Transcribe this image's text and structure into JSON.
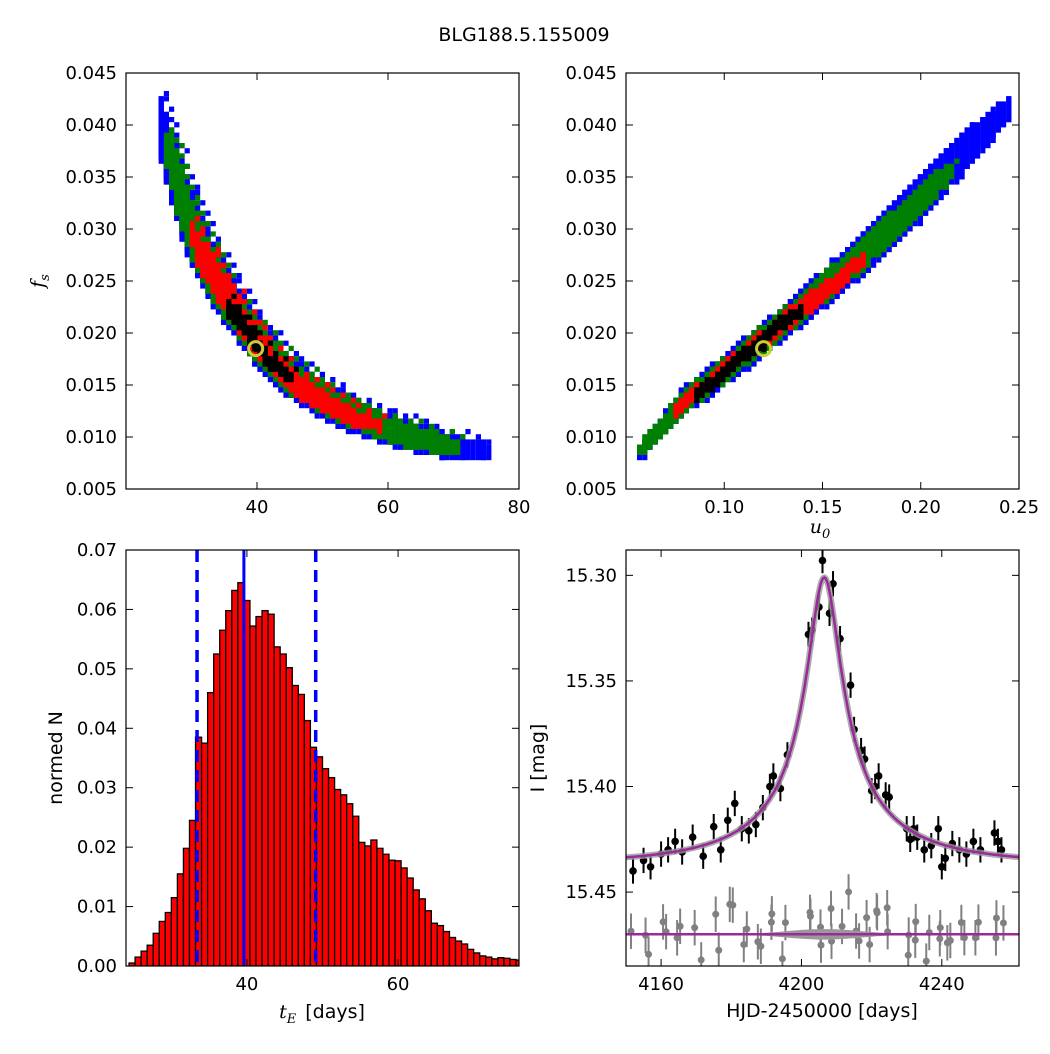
{
  "title": "BLG188.5.155009",
  "colors": {
    "blue": "#0000ff",
    "green": "#008000",
    "red": "#ff0000",
    "black": "#000000",
    "best_ring": "#cccc33",
    "model": "#9a2a9a",
    "model_band": "#999999",
    "resid": "#808080"
  },
  "chart_data": [
    {
      "type": "heatmap",
      "id": "ts_fs",
      "xlabel": "",
      "ylabel": "f_s",
      "ylabel_main": "f",
      "ylabel_sub": "s",
      "xlim": [
        20,
        80
      ],
      "ylim": [
        0.005,
        0.045
      ],
      "xticks": [
        40,
        60,
        80
      ],
      "xtick_labels": [
        "40",
        "60",
        "80"
      ],
      "yticks": [
        0.005,
        0.01,
        0.015,
        0.02,
        0.025,
        0.03,
        0.035,
        0.04,
        0.045
      ],
      "ytick_labels": [
        "0.005",
        "0.010",
        "0.015",
        "0.020",
        "0.025",
        "0.030",
        "0.035",
        "0.040",
        "0.045"
      ],
      "best_fit": [
        39.8,
        0.0185
      ],
      "contours": [
        {
          "level": "3 sigma",
          "color": "blue",
          "points": [
            [
              25,
              0.0405
            ],
            [
              26.5,
              0.0372
            ],
            [
              28,
              0.034
            ],
            [
              30,
              0.03
            ],
            [
              33,
              0.026
            ],
            [
              36.5,
              0.0225
            ],
            [
              40,
              0.019
            ],
            [
              45,
              0.0158
            ],
            [
              52,
              0.0128
            ],
            [
              60,
              0.0107
            ],
            [
              68,
              0.0093
            ],
            [
              75.5,
              0.0085
            ]
          ],
          "half_width": [
            0.0022,
            0.0028,
            0.0032,
            0.0031,
            0.0027,
            0.0024,
            0.0021,
            0.0018,
            0.0015,
            0.0013,
            0.0011,
            0.0006
          ]
        },
        {
          "level": "2 sigma",
          "color": "green",
          "points": [
            [
              26.5,
              0.0375
            ],
            [
              28,
              0.034
            ],
            [
              30,
              0.03
            ],
            [
              33,
              0.026
            ],
            [
              36.5,
              0.0225
            ],
            [
              40,
              0.019
            ],
            [
              45,
              0.0158
            ],
            [
              52,
              0.0128
            ],
            [
              60,
              0.0107
            ],
            [
              67,
              0.0094
            ],
            [
              71,
              0.0088
            ]
          ],
          "half_width": [
            0.0016,
            0.0023,
            0.0024,
            0.0022,
            0.0019,
            0.0017,
            0.0014,
            0.0012,
            0.001,
            0.0008,
            0.0005
          ]
        },
        {
          "level": "1 sigma",
          "color": "red",
          "points": [
            [
              30,
              0.0298
            ],
            [
              31.5,
              0.0275
            ],
            [
              33,
              0.026
            ],
            [
              35,
              0.0238
            ],
            [
              37,
              0.022
            ],
            [
              40,
              0.019
            ],
            [
              43,
              0.0168
            ],
            [
              46,
              0.015
            ],
            [
              50,
              0.0135
            ],
            [
              55,
              0.0118
            ],
            [
              59,
              0.011
            ]
          ],
          "half_width": [
            0.0007,
            0.0012,
            0.0014,
            0.0014,
            0.0013,
            0.0012,
            0.001,
            0.0009,
            0.0008,
            0.0006,
            0.0003
          ]
        },
        {
          "level": "best",
          "color": "black",
          "points": [
            [
              35.5,
              0.0225
            ],
            [
              37.5,
              0.021
            ],
            [
              39.5,
              0.0192
            ],
            [
              42,
              0.0172
            ],
            [
              45,
              0.0158
            ]
          ],
          "half_width": [
            0.0004,
            0.0006,
            0.0006,
            0.0005,
            0.0003
          ]
        }
      ]
    },
    {
      "type": "heatmap",
      "id": "u0_fs",
      "xlabel": "u_0",
      "xlabel_main": "u",
      "xlabel_sub": "0",
      "ylabel": "",
      "xlim": [
        0.05,
        0.25
      ],
      "ylim": [
        0.005,
        0.045
      ],
      "xticks": [
        0.1,
        0.15,
        0.2,
        0.25
      ],
      "xtick_labels": [
        "0.10",
        "0.15",
        "0.20",
        "0.25"
      ],
      "yticks": [
        0.005,
        0.01,
        0.015,
        0.02,
        0.025,
        0.03,
        0.035,
        0.04,
        0.045
      ],
      "ytick_labels": [
        "0.005",
        "0.010",
        "0.015",
        "0.020",
        "0.025",
        "0.030",
        "0.035",
        "0.040",
        "0.045"
      ],
      "best_fit": [
        0.12,
        0.0185
      ],
      "contours": [
        {
          "level": "3 sigma",
          "color": "blue",
          "points": [
            [
              0.057,
              0.0085
            ],
            [
              0.08,
              0.0135
            ],
            [
              0.11,
              0.0178
            ],
            [
              0.14,
              0.0225
            ],
            [
              0.17,
              0.0275
            ],
            [
              0.2,
              0.033
            ],
            [
              0.22,
              0.037
            ],
            [
              0.245,
              0.0415
            ]
          ],
          "half_width": [
            0.0005,
            0.0011,
            0.0013,
            0.0015,
            0.0018,
            0.002,
            0.0018,
            0.0008
          ]
        },
        {
          "level": "2 sigma",
          "color": "green",
          "points": [
            [
              0.058,
              0.0088
            ],
            [
              0.08,
              0.0135
            ],
            [
              0.11,
              0.0178
            ],
            [
              0.14,
              0.0225
            ],
            [
              0.17,
              0.0275
            ],
            [
              0.2,
              0.0328
            ],
            [
              0.215,
              0.0355
            ]
          ],
          "half_width": [
            0.0004,
            0.0009,
            0.001,
            0.0012,
            0.0013,
            0.0012,
            0.0006
          ]
        },
        {
          "level": "1 sigma",
          "color": "red",
          "points": [
            [
              0.075,
              0.0125
            ],
            [
              0.1,
              0.0165
            ],
            [
              0.13,
              0.021
            ],
            [
              0.155,
              0.0245
            ],
            [
              0.17,
              0.027
            ]
          ],
          "half_width": [
            0.0003,
            0.0005,
            0.0007,
            0.0007,
            0.0003
          ]
        },
        {
          "level": "best",
          "color": "black",
          "points": [
            [
              0.085,
              0.0138
            ],
            [
              0.105,
              0.017
            ],
            [
              0.13,
              0.021
            ],
            [
              0.14,
              0.0222
            ]
          ],
          "half_width": [
            0.0003,
            0.0004,
            0.0004,
            0.0002
          ]
        }
      ]
    },
    {
      "type": "bar",
      "id": "te_hist",
      "xlabel": "t_E  [days]",
      "xlabel_main": "t",
      "xlabel_sub": "E",
      "xlabel_rest": "[days]",
      "ylabel": "normed N",
      "xlim": [
        24,
        76
      ],
      "ylim": [
        0,
        0.07
      ],
      "xticks": [
        40,
        60
      ],
      "xtick_labels": [
        "40",
        "60"
      ],
      "yticks": [
        0,
        0.01,
        0.02,
        0.03,
        0.04,
        0.05,
        0.06,
        0.07
      ],
      "ytick_labels": [
        "0.00",
        "0.01",
        "0.02",
        "0.03",
        "0.04",
        "0.05",
        "0.06",
        "0.07"
      ],
      "bin_start": 24.4,
      "bin_width": 0.8,
      "values": [
        0.0005,
        0.0015,
        0.0025,
        0.0035,
        0.0055,
        0.0075,
        0.009,
        0.0115,
        0.0155,
        0.0198,
        0.0245,
        0.0385,
        0.0375,
        0.046,
        0.0525,
        0.0565,
        0.0598,
        0.0632,
        0.0645,
        0.0615,
        0.0572,
        0.0588,
        0.0598,
        0.0592,
        0.0537,
        0.0525,
        0.0502,
        0.0472,
        0.0457,
        0.0413,
        0.0368,
        0.0352,
        0.0332,
        0.0317,
        0.0297,
        0.0288,
        0.0273,
        0.0252,
        0.0208,
        0.0202,
        0.0212,
        0.0198,
        0.0188,
        0.0178,
        0.0177,
        0.0165,
        0.0148,
        0.0128,
        0.0113,
        0.0093,
        0.0072,
        0.0068,
        0.0058,
        0.0048,
        0.0042,
        0.0037,
        0.0028,
        0.0022,
        0.0017,
        0.0015,
        0.0012,
        0.0014,
        0.0013,
        0.0011,
        0.001,
        0.001,
        0.0008,
        0.0006,
        0.0004,
        0.0003,
        0.0002
      ],
      "median": 39.6,
      "interval": [
        33.4,
        49.1
      ]
    },
    {
      "type": "scatter",
      "id": "lightcurve",
      "xlabel": "HJD-2450000 [days]",
      "ylabel": "I [mag]",
      "xlim": [
        4150,
        4262
      ],
      "ylim": [
        15.485,
        15.288
      ],
      "xticks": [
        4160,
        4200,
        4240
      ],
      "xtick_labels": [
        "4160",
        "4200",
        "4240"
      ],
      "yticks": [
        15.3,
        15.35,
        15.4,
        15.45
      ],
      "ytick_labels": [
        "15.30",
        "15.35",
        "15.40",
        "15.45"
      ],
      "model": {
        "t0": 4206.5,
        "tE": 39.6,
        "u0": 0.12,
        "fs": 0.0185,
        "base_mag": 15.4365,
        "peak_mag": 15.301
      },
      "resid_offset": 15.47,
      "data": [
        [
          4152,
          15.44,
          0.006
        ],
        [
          4155,
          15.435,
          0.006
        ],
        [
          4157,
          15.438,
          0.006
        ],
        [
          4160,
          15.432,
          0.006
        ],
        [
          4162,
          15.43,
          0.006
        ],
        [
          4164,
          15.426,
          0.006
        ],
        [
          4166,
          15.431,
          0.006
        ],
        [
          4169,
          15.424,
          0.006
        ],
        [
          4172,
          15.433,
          0.006
        ],
        [
          4175,
          15.419,
          0.006
        ],
        [
          4177,
          15.43,
          0.006
        ],
        [
          4179,
          15.416,
          0.006
        ],
        [
          4181,
          15.408,
          0.006
        ],
        [
          4183,
          15.42,
          0.006
        ],
        [
          4185,
          15.421,
          0.006
        ],
        [
          4187,
          15.418,
          0.006
        ],
        [
          4189,
          15.41,
          0.006
        ],
        [
          4191,
          15.4,
          0.006
        ],
        [
          4192,
          15.395,
          0.006
        ],
        [
          4194,
          15.401,
          0.006
        ],
        [
          4196,
          15.385,
          0.006
        ],
        [
          4202,
          15.328,
          0.006
        ],
        [
          4203,
          15.326,
          0.006
        ],
        [
          4205,
          15.315,
          0.006
        ],
        [
          4206,
          15.293,
          0.006
        ],
        [
          4208,
          15.318,
          0.006
        ],
        [
          4209,
          15.304,
          0.006
        ],
        [
          4211,
          15.33,
          0.006
        ],
        [
          4214,
          15.352,
          0.006
        ],
        [
          4215,
          15.373,
          0.006
        ],
        [
          4217,
          15.383,
          0.006
        ],
        [
          4218,
          15.387,
          0.006
        ],
        [
          4220,
          15.402,
          0.006
        ],
        [
          4221,
          15.4,
          0.006
        ],
        [
          4222,
          15.395,
          0.006
        ],
        [
          4224,
          15.404,
          0.006
        ],
        [
          4225,
          15.405,
          0.006
        ],
        [
          4230,
          15.42,
          0.006
        ],
        [
          4231,
          15.425,
          0.006
        ],
        [
          4232,
          15.42,
          0.006
        ],
        [
          4233,
          15.424,
          0.006
        ],
        [
          4235,
          15.43,
          0.006
        ],
        [
          4237,
          15.428,
          0.006
        ],
        [
          4239,
          15.42,
          0.006
        ],
        [
          4240,
          15.438,
          0.006
        ],
        [
          4241,
          15.434,
          0.006
        ],
        [
          4243,
          15.427,
          0.006
        ],
        [
          4245,
          15.43,
          0.006
        ],
        [
          4247,
          15.432,
          0.006
        ],
        [
          4249,
          15.426,
          0.006
        ],
        [
          4251,
          15.43,
          0.006
        ],
        [
          4255,
          15.422,
          0.006
        ],
        [
          4256,
          15.426,
          0.006
        ],
        [
          4257,
          15.43,
          0.006
        ]
      ]
    }
  ]
}
